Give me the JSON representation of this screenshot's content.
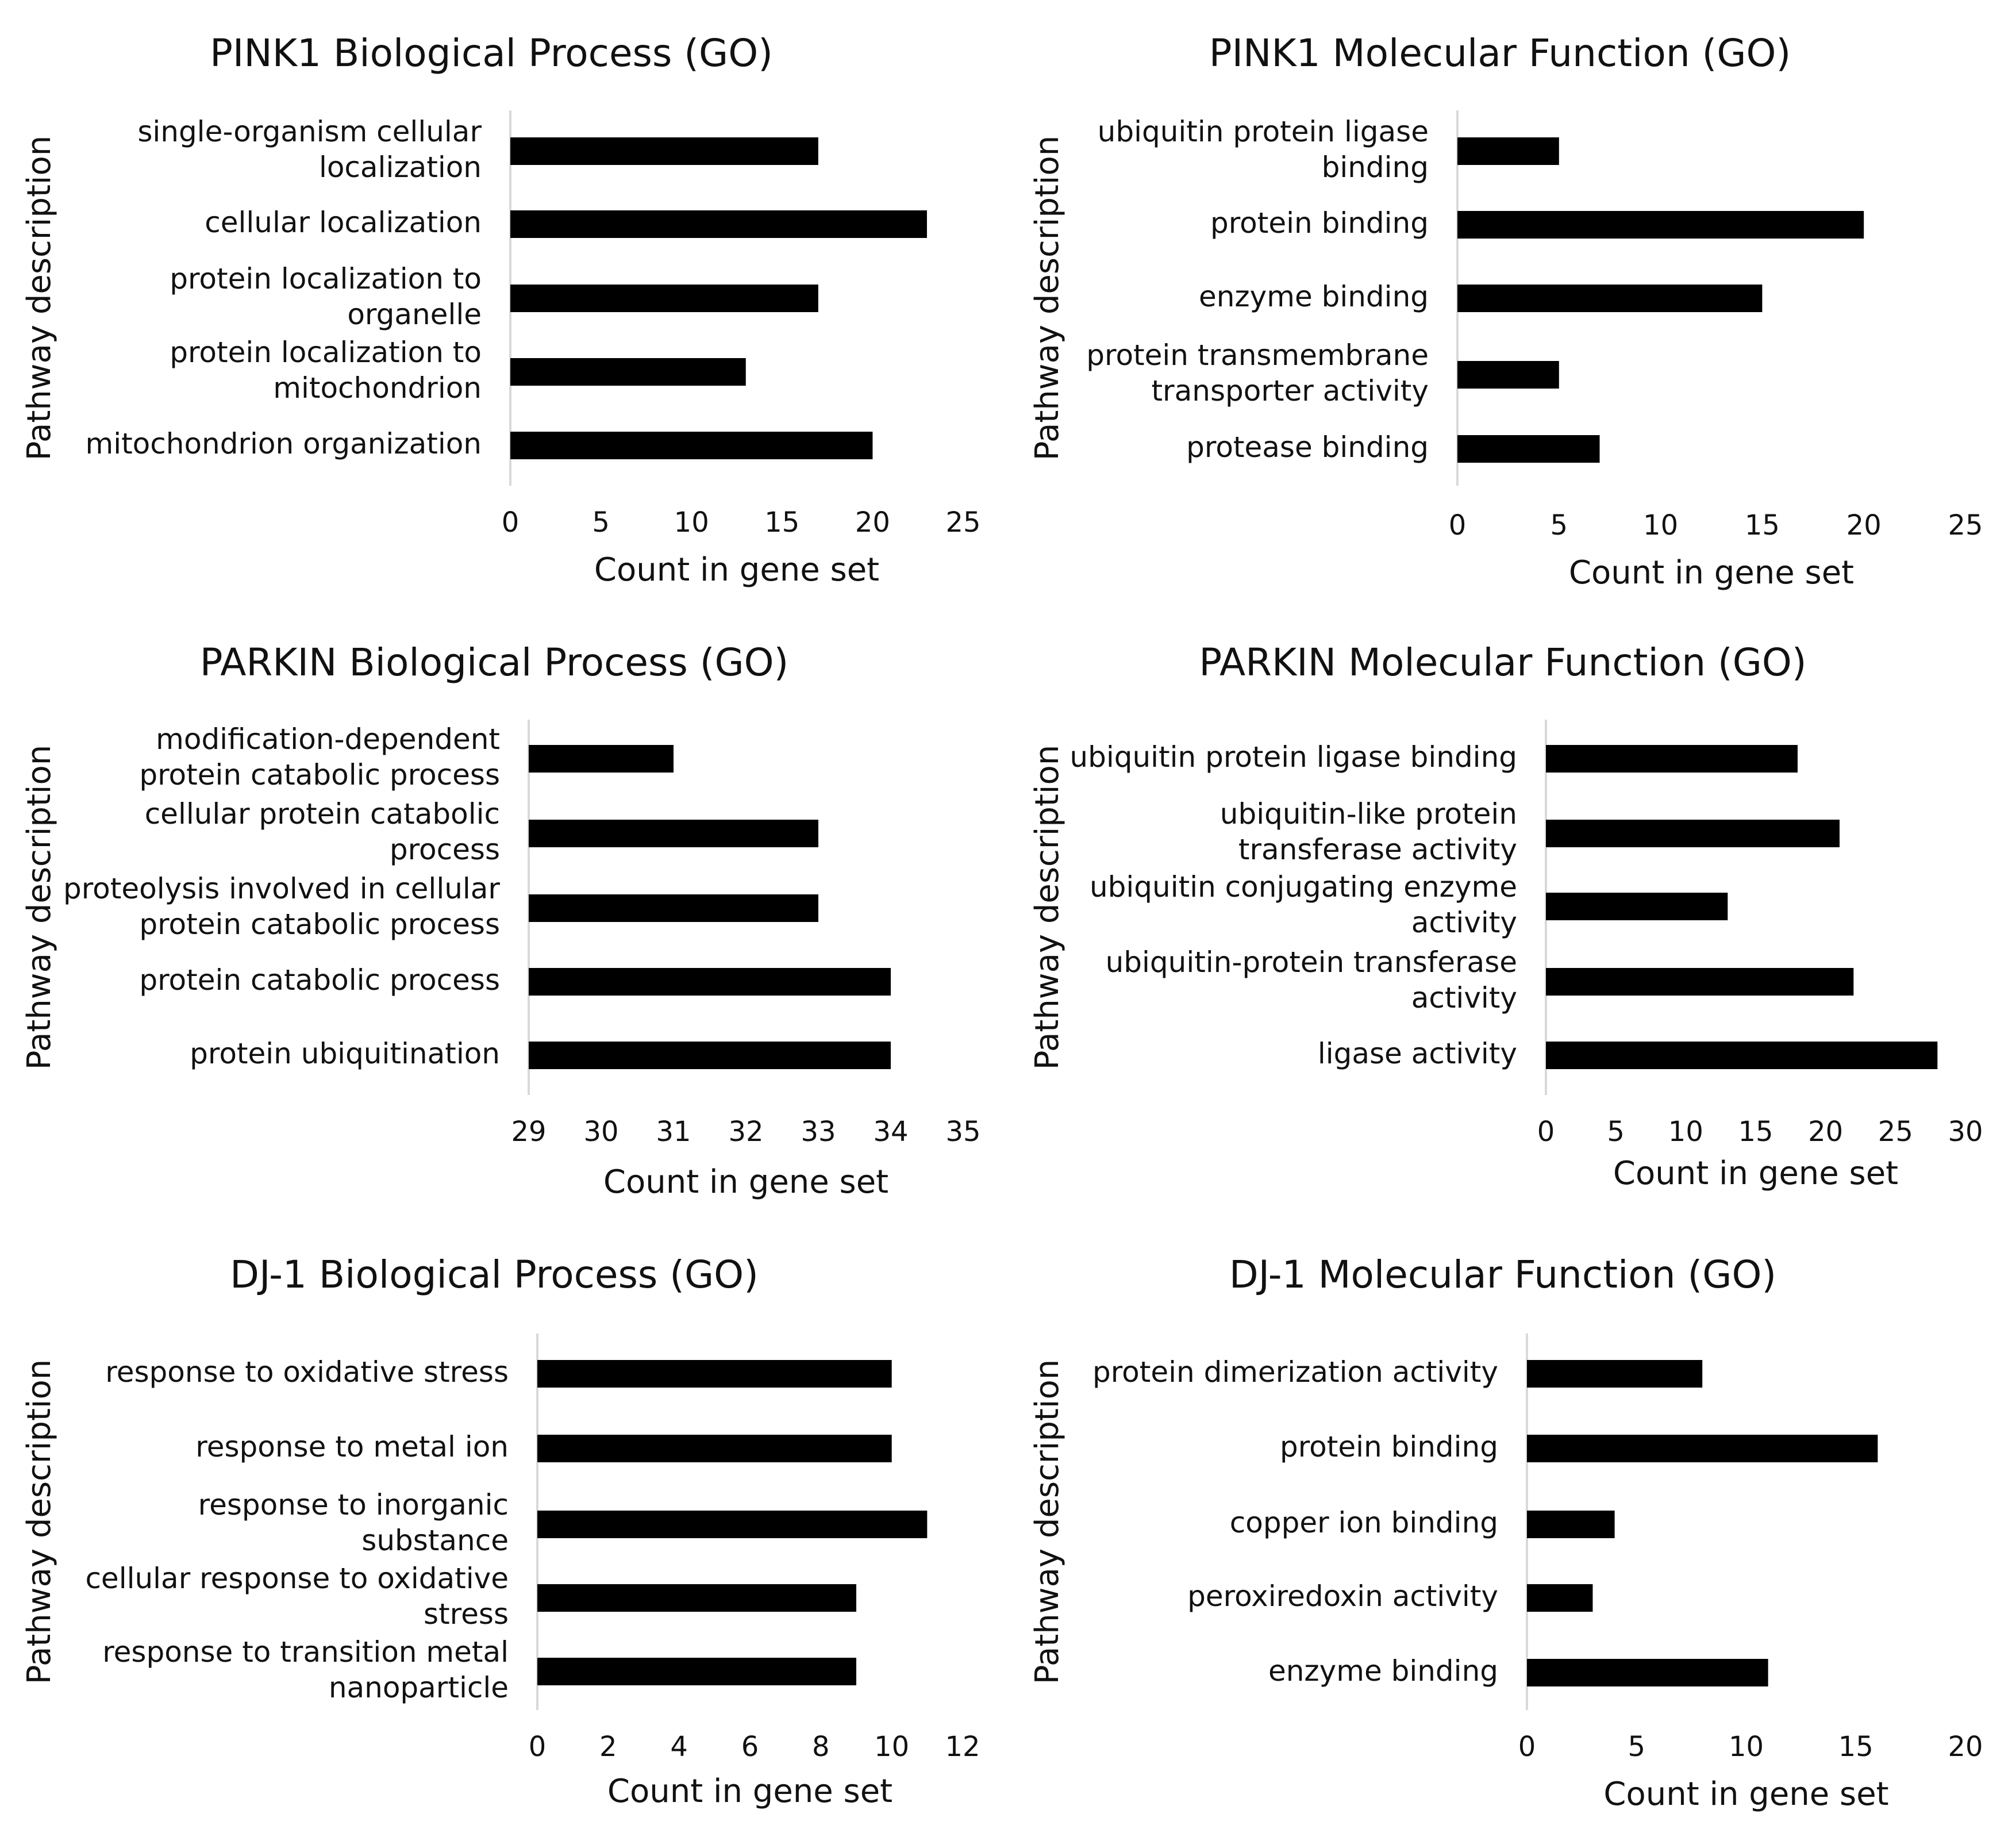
{
  "colors": {
    "bar": "#000000",
    "axis": "#d9d9d9",
    "text": "#111111",
    "background": "#ffffff"
  },
  "chart_data": [
    {
      "type": "bar",
      "orientation": "horizontal",
      "title": "PINK1 Biological Process (GO)",
      "xlabel": "Count in gene set",
      "ylabel": "Pathway description",
      "categories": [
        [
          "single-organism cellular",
          "localization"
        ],
        [
          "cellular localization"
        ],
        [
          "protein localization to",
          "organelle"
        ],
        [
          "protein localization to",
          "mitochondrion"
        ],
        [
          "mitochondrion organization"
        ]
      ],
      "values": [
        17,
        23,
        17,
        13,
        20
      ],
      "xlim": [
        0,
        25
      ],
      "xticks": [
        0,
        5,
        10,
        15,
        20,
        25
      ],
      "grid": false,
      "legend": "none"
    },
    {
      "type": "bar",
      "orientation": "horizontal",
      "title": "PINK1 Molecular Function (GO)",
      "xlabel": "Count in gene set",
      "ylabel": "Pathway description",
      "categories": [
        [
          "ubiquitin protein ligase",
          "binding"
        ],
        [
          "protein binding"
        ],
        [
          "enzyme binding"
        ],
        [
          "protein transmembrane",
          "transporter activity"
        ],
        [
          "protease binding"
        ]
      ],
      "values": [
        5,
        20,
        15,
        5,
        7
      ],
      "xlim": [
        0,
        25
      ],
      "xticks": [
        0,
        5,
        10,
        15,
        20,
        25
      ],
      "grid": false,
      "legend": "none"
    },
    {
      "type": "bar",
      "orientation": "horizontal",
      "title": "PARKIN Biological Process (GO)",
      "xlabel": "Count in gene set",
      "ylabel": "Pathway description",
      "categories": [
        [
          "modification-dependent",
          "protein catabolic process"
        ],
        [
          "cellular protein catabolic",
          "process"
        ],
        [
          "proteolysis involved in cellular",
          "protein catabolic process"
        ],
        [
          "protein catabolic process"
        ],
        [
          "protein ubiquitination"
        ]
      ],
      "values": [
        31,
        33,
        33,
        34,
        34
      ],
      "xlim": [
        29,
        35
      ],
      "xticks": [
        29,
        30,
        31,
        32,
        33,
        34,
        35
      ],
      "grid": false,
      "legend": "none"
    },
    {
      "type": "bar",
      "orientation": "horizontal",
      "title": "PARKIN Molecular Function (GO)",
      "xlabel": "Count in gene set",
      "ylabel": "Pathway description",
      "categories": [
        [
          "ubiquitin protein ligase binding"
        ],
        [
          "ubiquitin-like protein",
          "transferase activity"
        ],
        [
          "ubiquitin conjugating enzyme",
          "activity"
        ],
        [
          "ubiquitin-protein transferase",
          "activity"
        ],
        [
          "ligase activity"
        ]
      ],
      "values": [
        18,
        21,
        13,
        22,
        28
      ],
      "xlim": [
        0,
        30
      ],
      "xticks": [
        0,
        5,
        10,
        15,
        20,
        25,
        30
      ],
      "grid": false,
      "legend": "none"
    },
    {
      "type": "bar",
      "orientation": "horizontal",
      "title": "DJ-1 Biological Process (GO)",
      "xlabel": "Count in gene set",
      "ylabel": "Pathway description",
      "categories": [
        [
          "response to oxidative stress"
        ],
        [
          "response to metal ion"
        ],
        [
          "response to inorganic",
          "substance"
        ],
        [
          "cellular response to oxidative",
          "stress"
        ],
        [
          "response to transition metal",
          "nanoparticle"
        ]
      ],
      "values": [
        10,
        10,
        11,
        9,
        9
      ],
      "xlim": [
        0,
        12
      ],
      "xticks": [
        0,
        2,
        4,
        6,
        8,
        10,
        12
      ],
      "grid": false,
      "legend": "none"
    },
    {
      "type": "bar",
      "orientation": "horizontal",
      "title": "DJ-1 Molecular Function (GO)",
      "xlabel": "Count in gene set",
      "ylabel": "Pathway description",
      "categories": [
        [
          "protein dimerization activity"
        ],
        [
          "protein binding"
        ],
        [
          "copper ion binding"
        ],
        [
          "peroxiredoxin activity"
        ],
        [
          "enzyme binding"
        ]
      ],
      "values": [
        8,
        16,
        4,
        3,
        11
      ],
      "xlim": [
        0,
        20
      ],
      "xticks": [
        0,
        5,
        10,
        15,
        20
      ],
      "grid": false,
      "legend": "none"
    }
  ]
}
